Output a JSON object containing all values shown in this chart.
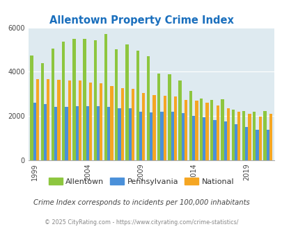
{
  "title": "Allentown Property Crime Index",
  "title_color": "#1a6fbd",
  "subtitle": "Crime Index corresponds to incidents per 100,000 inhabitants",
  "footer": "© 2025 CityRating.com - https://www.cityrating.com/crime-statistics/",
  "years": [
    1999,
    2000,
    2001,
    2002,
    2003,
    2004,
    2005,
    2006,
    2007,
    2008,
    2009,
    2010,
    2011,
    2012,
    2013,
    2014,
    2015,
    2016,
    2017,
    2018,
    2019,
    2020,
    2021
  ],
  "allentown": [
    4730,
    4380,
    5050,
    5350,
    5500,
    5480,
    5420,
    5700,
    5020,
    5230,
    4960,
    4690,
    3930,
    3900,
    3620,
    3130,
    2780,
    2720,
    2760,
    2300,
    2230,
    2200,
    2230
  ],
  "pennsylvania": [
    2600,
    2550,
    2400,
    2420,
    2430,
    2430,
    2430,
    2400,
    2360,
    2360,
    2200,
    2170,
    2200,
    2180,
    2120,
    2020,
    1940,
    1830,
    1740,
    1630,
    1510,
    1390,
    1380
  ],
  "national": [
    3670,
    3670,
    3650,
    3610,
    3590,
    3520,
    3470,
    3340,
    3270,
    3220,
    3050,
    2950,
    2910,
    2890,
    2740,
    2700,
    2610,
    2480,
    2360,
    2200,
    2110,
    1960,
    2100
  ],
  "allentown_color": "#8dc63f",
  "pennsylvania_color": "#4a90d9",
  "national_color": "#f5a623",
  "axes_bg": "#deeaf0",
  "ylim": [
    0,
    6000
  ],
  "yticks": [
    0,
    2000,
    4000,
    6000
  ],
  "bar_width": 0.28,
  "grid_color": "#ffffff",
  "tick_years": [
    1999,
    2004,
    2009,
    2014,
    2019
  ]
}
